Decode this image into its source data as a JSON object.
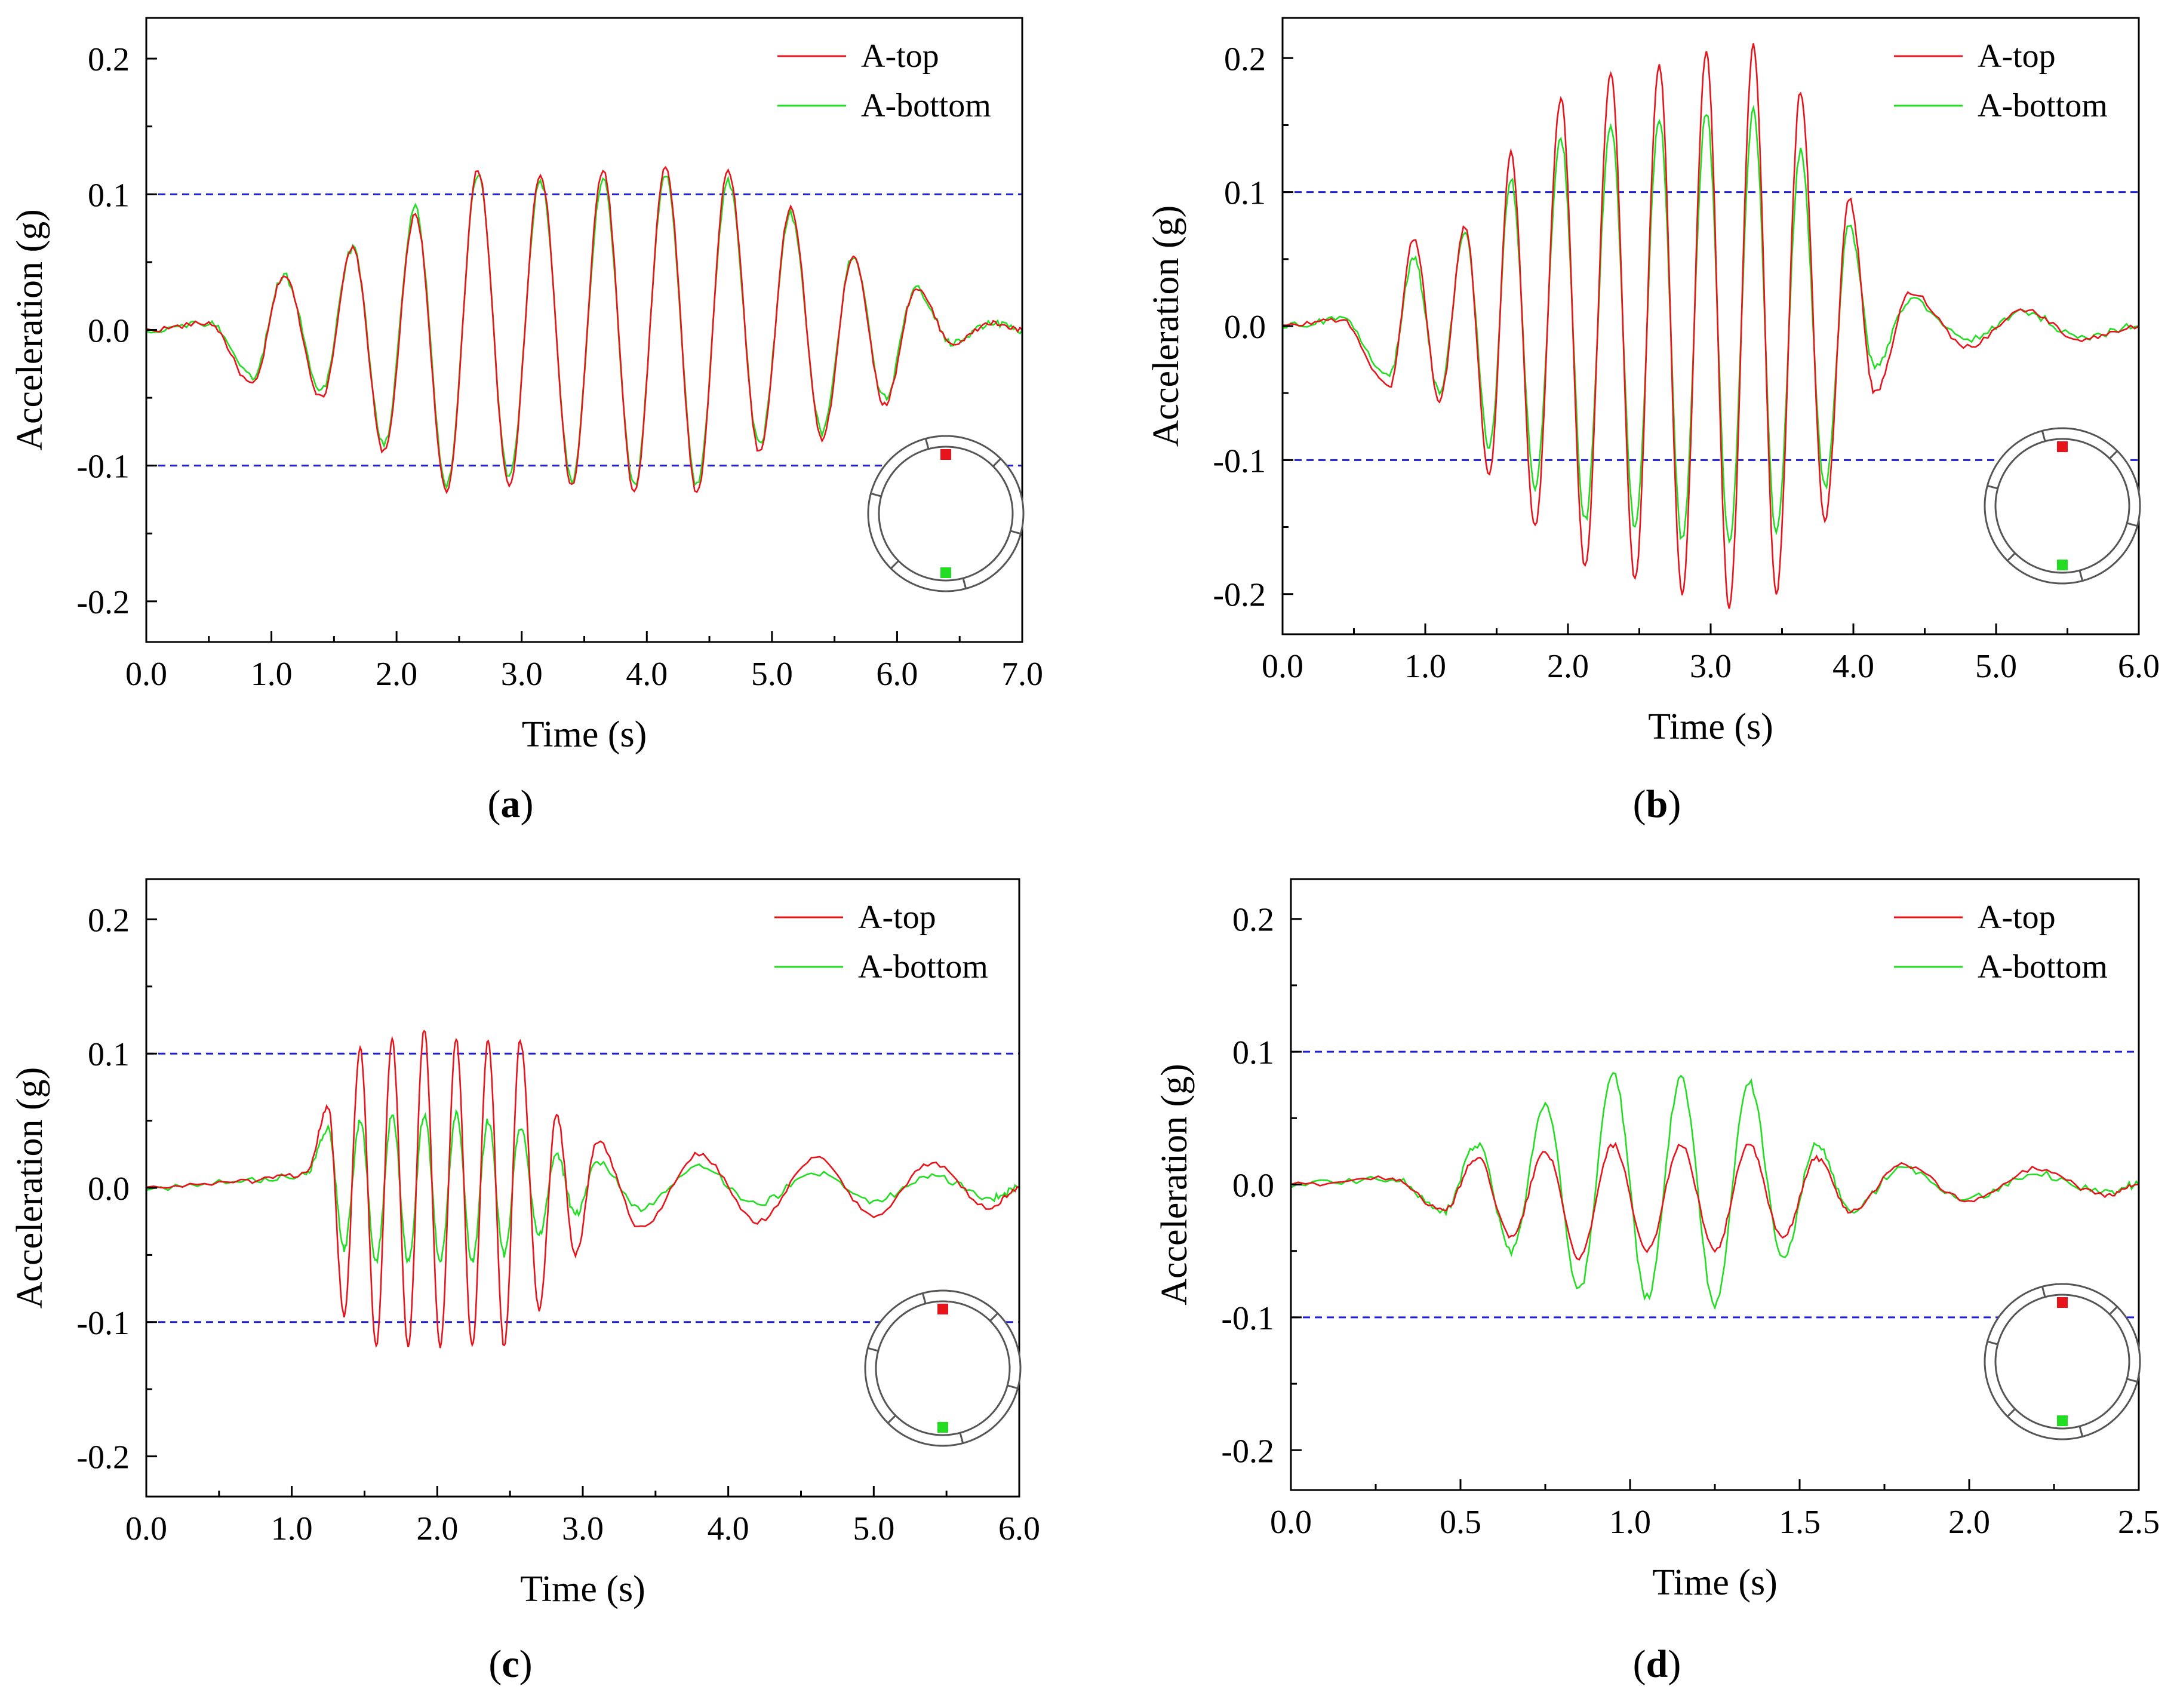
{
  "chart_data": [
    {
      "id": "a",
      "type": "line",
      "caption": "a",
      "xlabel": "Time (s)",
      "ylabel": "Acceleration (g)",
      "xlim": [
        0,
        7
      ],
      "ylim": [
        -0.23,
        0.23
      ],
      "xticks": [
        0,
        1,
        2,
        3,
        4,
        5,
        6,
        7
      ],
      "xtick_labels": [
        "0.0",
        "1.0",
        "2.0",
        "3.0",
        "4.0",
        "5.0",
        "6.0",
        "7.0"
      ],
      "yticks": [
        -0.2,
        -0.1,
        0.0,
        0.1,
        0.2
      ],
      "ytick_labels": [
        "-0.2",
        "-0.1",
        "0.0",
        "0.1",
        "0.2"
      ],
      "reference_lines": [
        0.1,
        -0.1
      ],
      "legend": [
        "A-top",
        "A-bottom"
      ],
      "legend_position": "top-right",
      "series": [
        {
          "name": "A-top",
          "color": "#e8141c",
          "x": [
            0,
            0.5,
            0.85,
            1.1,
            1.4,
            1.65,
            1.9,
            2.15,
            2.4,
            2.65,
            2.9,
            3.15,
            3.4,
            3.65,
            3.9,
            4.15,
            4.4,
            4.65,
            4.9,
            5.15,
            5.4,
            5.65,
            5.9,
            6.15,
            6.45,
            6.75,
            7.0
          ],
          "y": [
            0,
            0.005,
            -0.04,
            0.04,
            -0.05,
            0.06,
            -0.09,
            0.085,
            -0.12,
            0.118,
            -0.115,
            0.115,
            -0.115,
            0.118,
            -0.12,
            0.12,
            -0.12,
            0.118,
            -0.09,
            0.09,
            -0.08,
            0.055,
            -0.055,
            0.03,
            -0.01,
            0.005,
            0
          ]
        },
        {
          "name": "A-bottom",
          "color": "#22dd22",
          "x": [
            0,
            0.5,
            0.85,
            1.1,
            1.4,
            1.65,
            1.9,
            2.15,
            2.4,
            2.65,
            2.9,
            3.15,
            3.4,
            3.65,
            3.9,
            4.15,
            4.4,
            4.65,
            4.9,
            5.15,
            5.4,
            5.65,
            5.9,
            6.15,
            6.45,
            6.75,
            7.0
          ],
          "y": [
            0,
            0.005,
            -0.035,
            0.04,
            -0.045,
            0.06,
            -0.085,
            0.09,
            -0.115,
            0.115,
            -0.11,
            0.11,
            -0.11,
            0.11,
            -0.115,
            0.115,
            -0.115,
            0.11,
            -0.085,
            0.085,
            -0.075,
            0.055,
            -0.05,
            0.03,
            -0.01,
            0.005,
            0
          ]
        }
      ]
    },
    {
      "id": "b",
      "type": "line",
      "caption": "b",
      "xlabel": "Time (s)",
      "ylabel": "Acceleration (g)",
      "xlim": [
        0,
        6
      ],
      "ylim": [
        -0.23,
        0.23
      ],
      "xticks": [
        0,
        1,
        2,
        3,
        4,
        5,
        6
      ],
      "xtick_labels": [
        "0.0",
        "1.0",
        "2.0",
        "3.0",
        "4.0",
        "5.0",
        "6.0"
      ],
      "yticks": [
        -0.2,
        -0.1,
        0.0,
        0.1,
        0.2
      ],
      "ytick_labels": [
        "-0.2",
        "-0.1",
        "0.0",
        "0.1",
        "0.2"
      ],
      "reference_lines": [
        0.1,
        -0.1
      ],
      "legend": [
        "A-top",
        "A-bottom"
      ],
      "legend_position": "top-right",
      "series": [
        {
          "name": "A-top",
          "color": "#e8141c",
          "x": [
            0,
            0.4,
            0.75,
            0.92,
            1.1,
            1.28,
            1.45,
            1.6,
            1.77,
            1.95,
            2.12,
            2.3,
            2.47,
            2.64,
            2.8,
            2.97,
            3.13,
            3.3,
            3.46,
            3.63,
            3.8,
            3.97,
            4.15,
            4.4,
            4.8,
            5.2,
            5.6,
            6.0
          ],
          "y": [
            0,
            0.005,
            -0.045,
            0.065,
            -0.055,
            0.075,
            -0.11,
            0.13,
            -0.15,
            0.17,
            -0.18,
            0.19,
            -0.19,
            0.195,
            -0.2,
            0.205,
            -0.21,
            0.21,
            -0.2,
            0.175,
            -0.145,
            0.095,
            -0.05,
            0.025,
            -0.015,
            0.012,
            -0.01,
            0
          ]
        },
        {
          "name": "A-bottom",
          "color": "#22dd22",
          "x": [
            0,
            0.4,
            0.75,
            0.92,
            1.1,
            1.28,
            1.45,
            1.6,
            1.77,
            1.95,
            2.12,
            2.3,
            2.47,
            2.64,
            2.8,
            2.97,
            3.13,
            3.3,
            3.46,
            3.63,
            3.8,
            3.97,
            4.15,
            4.4,
            4.8,
            5.2,
            5.6,
            6.0
          ],
          "y": [
            0,
            0.005,
            -0.035,
            0.05,
            -0.05,
            0.07,
            -0.09,
            0.11,
            -0.12,
            0.14,
            -0.145,
            0.15,
            -0.15,
            0.155,
            -0.16,
            0.16,
            -0.16,
            0.16,
            -0.155,
            0.13,
            -0.12,
            0.075,
            -0.03,
            0.02,
            -0.01,
            0.01,
            -0.008,
            0
          ]
        }
      ]
    },
    {
      "id": "c",
      "type": "line",
      "caption": "c",
      "xlabel": "Time (s)",
      "ylabel": "Acceleration (g)",
      "xlim": [
        0,
        6
      ],
      "ylim": [
        -0.23,
        0.23
      ],
      "xticks": [
        0,
        1,
        2,
        3,
        4,
        5,
        6
      ],
      "xtick_labels": [
        "0.0",
        "1.0",
        "2.0",
        "3.0",
        "4.0",
        "5.0",
        "6.0"
      ],
      "yticks": [
        -0.2,
        -0.1,
        0.0,
        0.1,
        0.2
      ],
      "ytick_labels": [
        "-0.2",
        "-0.1",
        "0.0",
        "0.1",
        "0.2"
      ],
      "reference_lines": [
        0.1,
        -0.1
      ],
      "legend": [
        "A-top",
        "A-bottom"
      ],
      "legend_position": "top-right",
      "series": [
        {
          "name": "A-top",
          "color": "#e8141c",
          "x": [
            0,
            0.7,
            1.1,
            1.25,
            1.36,
            1.47,
            1.58,
            1.69,
            1.8,
            1.91,
            2.02,
            2.13,
            2.24,
            2.35,
            2.46,
            2.57,
            2.7,
            2.82,
            2.95,
            3.1,
            3.4,
            3.8,
            4.2,
            4.6,
            5.0,
            5.4,
            5.8,
            6.0
          ],
          "y": [
            0,
            0.005,
            0.01,
            0.06,
            -0.095,
            0.105,
            -0.118,
            0.11,
            -0.118,
            0.118,
            -0.118,
            0.11,
            -0.118,
            0.11,
            -0.118,
            0.11,
            -0.09,
            0.055,
            -0.05,
            0.035,
            -0.03,
            0.025,
            -0.025,
            0.022,
            -0.02,
            0.018,
            -0.015,
            0
          ]
        },
        {
          "name": "A-bottom",
          "color": "#22dd22",
          "x": [
            0,
            0.7,
            1.1,
            1.25,
            1.36,
            1.47,
            1.58,
            1.69,
            1.8,
            1.91,
            2.02,
            2.13,
            2.24,
            2.35,
            2.46,
            2.57,
            2.7,
            2.82,
            2.95,
            3.1,
            3.4,
            3.8,
            4.2,
            4.6,
            5.0,
            5.4,
            5.8,
            6.0
          ],
          "y": [
            0,
            0.005,
            0.01,
            0.045,
            -0.045,
            0.05,
            -0.055,
            0.055,
            -0.055,
            0.055,
            -0.055,
            0.055,
            -0.055,
            0.05,
            -0.05,
            0.045,
            -0.035,
            0.025,
            -0.02,
            0.02,
            -0.015,
            0.015,
            -0.012,
            0.012,
            -0.01,
            0.01,
            -0.008,
            0
          ]
        }
      ]
    },
    {
      "id": "d",
      "type": "line",
      "caption": "d",
      "xlabel": "Time (s)",
      "ylabel": "Acceleration (g)",
      "xlim": [
        0,
        2.5
      ],
      "ylim": [
        -0.23,
        0.23
      ],
      "xticks": [
        0,
        0.5,
        1.0,
        1.5,
        2.0,
        2.5
      ],
      "xtick_labels": [
        "0.0",
        "0.5",
        "1.0",
        "1.5",
        "2.0",
        "2.5"
      ],
      "yticks": [
        -0.2,
        -0.1,
        0.0,
        0.1,
        0.2
      ],
      "ytick_labels": [
        "-0.2",
        "-0.1",
        "0.0",
        "0.1",
        "0.2"
      ],
      "reference_lines": [
        0.1,
        -0.1
      ],
      "legend": [
        "A-top",
        "A-bottom"
      ],
      "legend_position": "top-right",
      "series": [
        {
          "name": "A-top",
          "color": "#e8141c",
          "x": [
            0,
            0.3,
            0.45,
            0.55,
            0.65,
            0.75,
            0.85,
            0.95,
            1.05,
            1.15,
            1.25,
            1.35,
            1.45,
            1.55,
            1.65,
            1.8,
            2.0,
            2.2,
            2.4,
            2.5
          ],
          "y": [
            0,
            0.005,
            -0.02,
            0.02,
            -0.04,
            0.025,
            -0.055,
            0.03,
            -0.05,
            0.03,
            -0.05,
            0.03,
            -0.04,
            0.02,
            -0.02,
            0.015,
            -0.012,
            0.012,
            -0.008,
            0
          ]
        },
        {
          "name": "A-bottom",
          "color": "#22dd22",
          "x": [
            0,
            0.3,
            0.45,
            0.55,
            0.65,
            0.75,
            0.85,
            0.95,
            1.05,
            1.15,
            1.25,
            1.35,
            1.45,
            1.55,
            1.65,
            1.8,
            2.0,
            2.2,
            2.4,
            2.5
          ],
          "y": [
            0,
            0.005,
            -0.02,
            0.03,
            -0.05,
            0.06,
            -0.08,
            0.083,
            -0.085,
            0.08,
            -0.09,
            0.078,
            -0.055,
            0.03,
            -0.02,
            0.012,
            -0.01,
            0.008,
            -0.006,
            0
          ]
        }
      ]
    }
  ],
  "style": {
    "top_color": "#e8141c",
    "bottom_color": "#22dd22",
    "reference_color": "#1f1fd6",
    "axis_color": "#000000"
  }
}
